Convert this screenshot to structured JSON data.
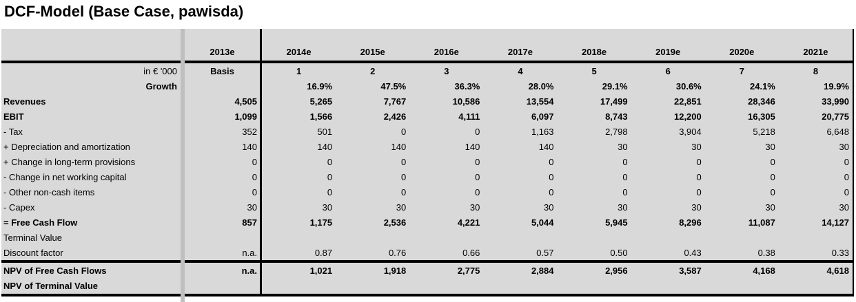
{
  "title": "DCF-Model (Base Case, pawisda)",
  "colors": {
    "table_bg": "#d9d9d9",
    "separator_band": "#bfbfbf",
    "rule": "#000000"
  },
  "table": {
    "years": [
      "2013e",
      "2014e",
      "2015e",
      "2016e",
      "2017e",
      "2018e",
      "2019e",
      "2020e",
      "2021e"
    ],
    "basis": {
      "label": "in € '000",
      "values": [
        "Basis",
        "1",
        "2",
        "3",
        "4",
        "5",
        "6",
        "7",
        "8"
      ]
    },
    "rows": [
      {
        "label": "Growth",
        "bold": true,
        "label_align": "right",
        "values": [
          "",
          "16.9%",
          "47.5%",
          "36.3%",
          "28.0%",
          "29.1%",
          "30.6%",
          "24.1%",
          "19.9%"
        ]
      },
      {
        "label": "Revenues",
        "bold": true,
        "label_align": "left",
        "values": [
          "4,505",
          "5,265",
          "7,767",
          "10,586",
          "13,554",
          "17,499",
          "22,851",
          "28,346",
          "33,990"
        ]
      },
      {
        "label": "EBIT",
        "bold": true,
        "label_align": "left",
        "values": [
          "1,099",
          "1,566",
          "2,426",
          "4,111",
          "6,097",
          "8,743",
          "12,200",
          "16,305",
          "20,775"
        ]
      },
      {
        "label": "- Tax",
        "bold": false,
        "label_align": "left",
        "values": [
          "352",
          "501",
          "0",
          "0",
          "1,163",
          "2,798",
          "3,904",
          "5,218",
          "6,648"
        ]
      },
      {
        "label": "+ Depreciation and amortization",
        "bold": false,
        "label_align": "left",
        "values": [
          "140",
          "140",
          "140",
          "140",
          "140",
          "30",
          "30",
          "30",
          "30"
        ]
      },
      {
        "label": "+ Change in long-term provisions",
        "bold": false,
        "label_align": "left",
        "values": [
          "0",
          "0",
          "0",
          "0",
          "0",
          "0",
          "0",
          "0",
          "0"
        ]
      },
      {
        "label": "- Change in net working capital",
        "bold": false,
        "label_align": "left",
        "values": [
          "0",
          "0",
          "0",
          "0",
          "0",
          "0",
          "0",
          "0",
          "0"
        ]
      },
      {
        "label": "- Other non-cash items",
        "bold": false,
        "label_align": "left",
        "values": [
          "0",
          "0",
          "0",
          "0",
          "0",
          "0",
          "0",
          "0",
          "0"
        ]
      },
      {
        "label": "- Capex",
        "bold": false,
        "label_align": "left",
        "values": [
          "30",
          "30",
          "30",
          "30",
          "30",
          "30",
          "30",
          "30",
          "30"
        ]
      },
      {
        "label": "= Free Cash Flow",
        "bold": true,
        "label_align": "left",
        "values": [
          "857",
          "1,175",
          "2,536",
          "4,221",
          "5,044",
          "5,945",
          "8,296",
          "11,087",
          "14,127"
        ]
      },
      {
        "label": "Terminal Value",
        "bold": false,
        "label_align": "left",
        "values": [
          "",
          "",
          "",
          "",
          "",
          "",
          "",
          "",
          ""
        ]
      },
      {
        "label": "Discount factor",
        "bold": false,
        "label_align": "left",
        "values": [
          "n.a.",
          "0.87",
          "0.76",
          "0.66",
          "0.57",
          "0.50",
          "0.43",
          "0.38",
          "0.33"
        ]
      }
    ],
    "npv_rows": [
      {
        "label": "NPV of Free Cash Flows",
        "bold": true,
        "label_align": "left",
        "values": [
          "n.a.",
          "1,021",
          "1,918",
          "2,775",
          "2,884",
          "2,956",
          "3,587",
          "4,168",
          "4,618"
        ]
      },
      {
        "label": "NPV of Terminal Value",
        "bold": true,
        "label_align": "left",
        "values": [
          "",
          "",
          "",
          "",
          "",
          "",
          "",
          "",
          ""
        ]
      }
    ]
  }
}
